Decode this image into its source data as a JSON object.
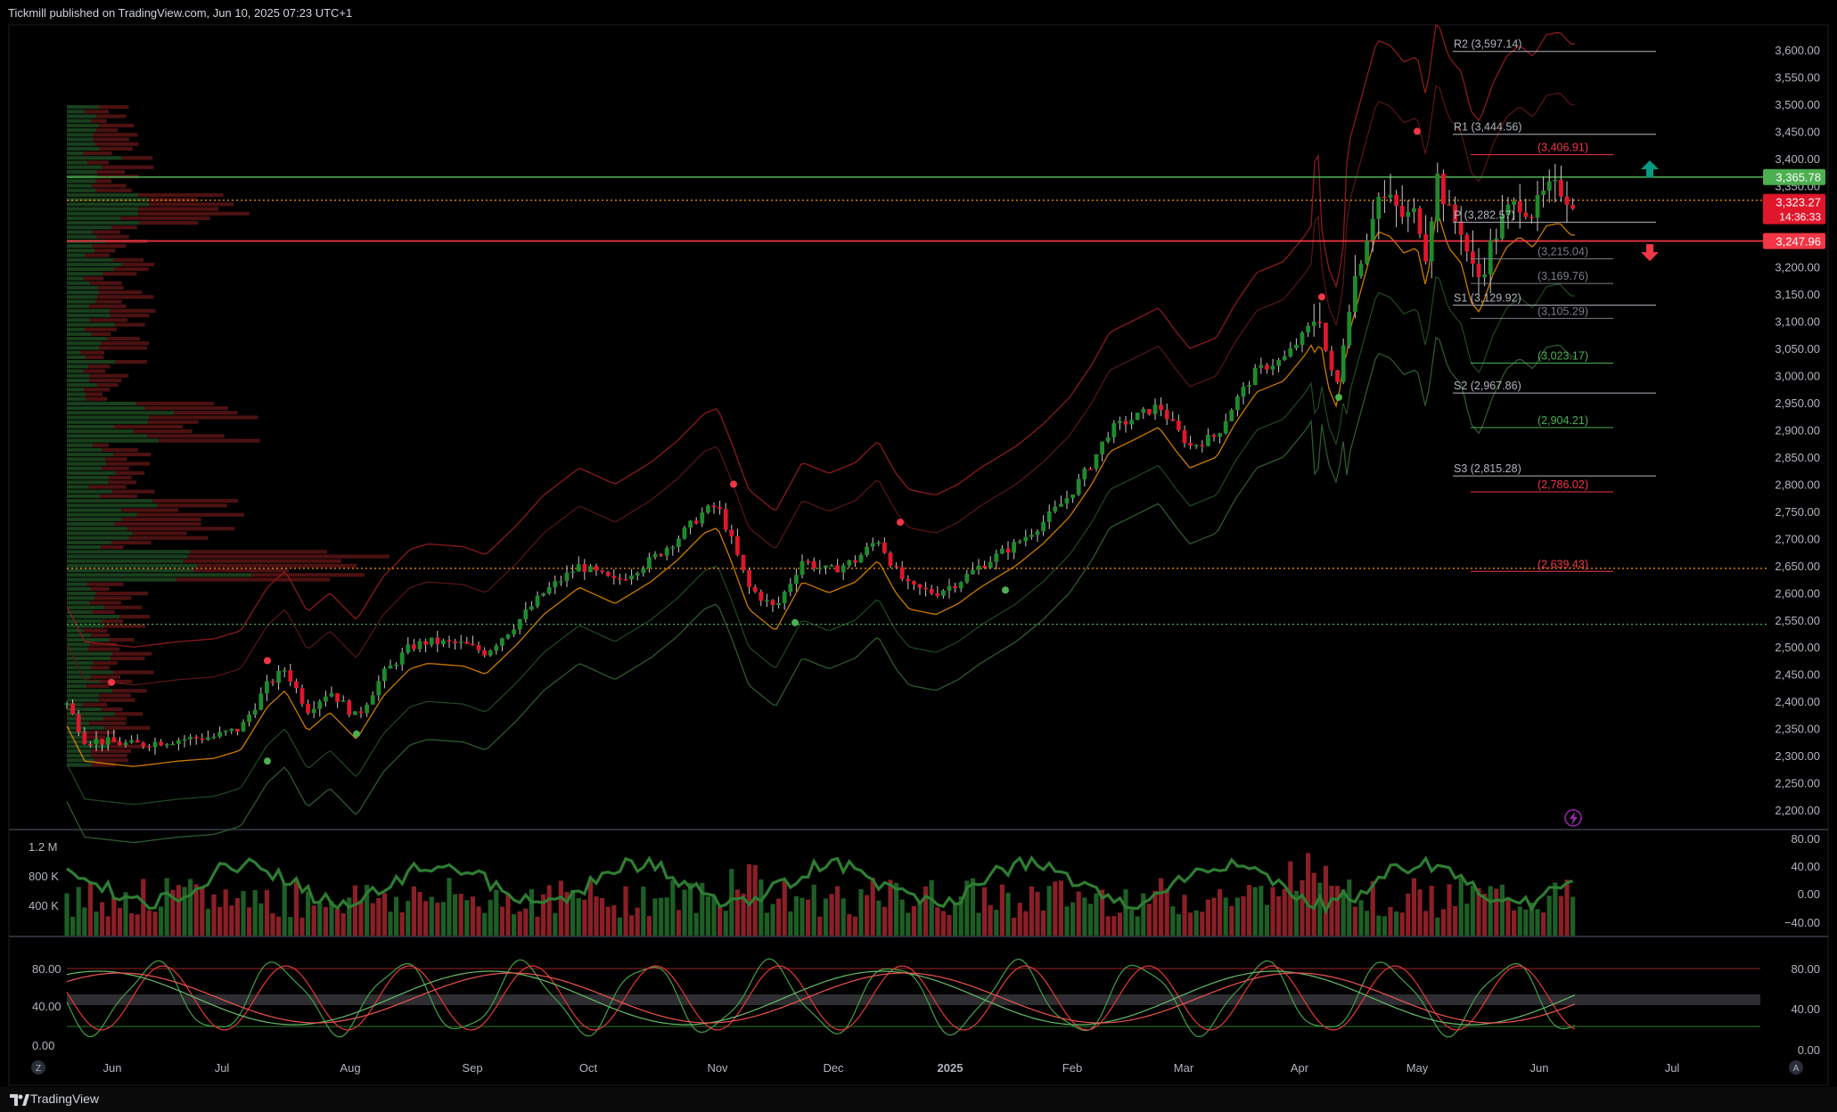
{
  "header": {
    "published": "Tickmill published on TradingView.com, Jun 10, 2025 07:23 UTC+1"
  },
  "footer": {
    "brand": "TradingView"
  },
  "colors": {
    "up": "#1f8a2b",
    "down": "#e0162b",
    "bg": "#000000",
    "accent_green": "#4caf50",
    "accent_red": "#f23645"
  },
  "axis": {
    "price_ticks": [
      "3,600.00",
      "3,550.00",
      "3,500.00",
      "3,450.00",
      "3,400.00",
      "3,350.00",
      "3,300.00",
      "3,250.00",
      "3,200.00",
      "3,150.00",
      "3,100.00",
      "3,050.00",
      "3,000.00",
      "2,950.00",
      "2,900.00",
      "2,850.00",
      "2,800.00",
      "2,750.00",
      "2,700.00",
      "2,650.00",
      "2,600.00",
      "2,550.00",
      "2,500.00",
      "2,450.00",
      "2,400.00",
      "2,350.00",
      "2,300.00",
      "2,250.00",
      "2,200.00"
    ],
    "months": [
      "Jun",
      "Jul",
      "Aug",
      "Sep",
      "Oct",
      "Nov",
      "Dec",
      "2025",
      "Feb",
      "Mar",
      "Apr",
      "May",
      "Jun",
      "Jul"
    ],
    "volume_ticks": [
      "1.2 M",
      "800 K",
      "400 K"
    ],
    "volume_osc_ticks": [
      "80.00",
      "40.00",
      "0.00",
      "−40.00"
    ],
    "stoch_ticks_left": [
      "80.00",
      "40.00",
      "0.00"
    ],
    "stoch_ticks_right": [
      "80.00",
      "40.00",
      "0.00"
    ],
    "corner_left": "Z",
    "corner_right": "A"
  },
  "price_badges": {
    "resistance": "3,365.78",
    "last": "3,323.27",
    "countdown": "14:36:33",
    "support": "3,247.96"
  },
  "pivots": [
    {
      "label": "R2 (3,597.14)",
      "value": 3597.14,
      "color": "#b2b5be"
    },
    {
      "label": "R1 (3,444.56)",
      "value": 3444.56,
      "color": "#b2b5be"
    },
    {
      "label": "(3,406.91)",
      "value": 3406.91,
      "color": "#f23645"
    },
    {
      "label": "P (3,282.57)",
      "value": 3282.57,
      "color": "#b2b5be"
    },
    {
      "label": "(3,215.04)",
      "value": 3215.04,
      "color": "#7a7d85"
    },
    {
      "label": "(3,169.76)",
      "value": 3169.76,
      "color": "#7a7d85"
    },
    {
      "label": "S1 (3,129.92)",
      "value": 3129.92,
      "color": "#b2b5be"
    },
    {
      "label": "(3,105.29)",
      "value": 3105.29,
      "color": "#7a7d85"
    },
    {
      "label": "(3,023.17)",
      "value": 3023.17,
      "color": "#4caf50"
    },
    {
      "label": "S2 (2,967.86)",
      "value": 2967.86,
      "color": "#b2b5be"
    },
    {
      "label": "(2,904.21)",
      "value": 2904.21,
      "color": "#4caf50"
    },
    {
      "label": "S3 (2,815.28)",
      "value": 2815.28,
      "color": "#b2b5be"
    },
    {
      "label": "(2,786.02)",
      "value": 2786.02,
      "color": "#f23645"
    },
    {
      "label": "(2,639.43)",
      "value": 2639.43,
      "color": "#f23645"
    }
  ],
  "chart_data": {
    "type": "line",
    "title": "",
    "xlabel": "",
    "ylabel": "",
    "ylim": [
      2175,
      3640
    ],
    "x": [
      "Jun",
      "Jul",
      "Aug",
      "Sep",
      "Oct",
      "Nov",
      "Dec",
      "2025",
      "Feb",
      "Mar",
      "Apr",
      "May",
      "Jun",
      "Jul"
    ],
    "series": [
      {
        "values": [
          2350,
          2320,
          2430,
          2520,
          2640,
          2760,
          2650,
          2630,
          2820,
          2930,
          3000,
          3320,
          3340,
          3323
        ]
      }
    ],
    "levels": {
      "resistance": 3365.78,
      "support": 3247.96,
      "last": 3323.27,
      "dotted_orange_upper": 3323,
      "dotted_orange_lower": 2645,
      "dotted_green": 2542
    },
    "grid": false,
    "legend": "none"
  }
}
